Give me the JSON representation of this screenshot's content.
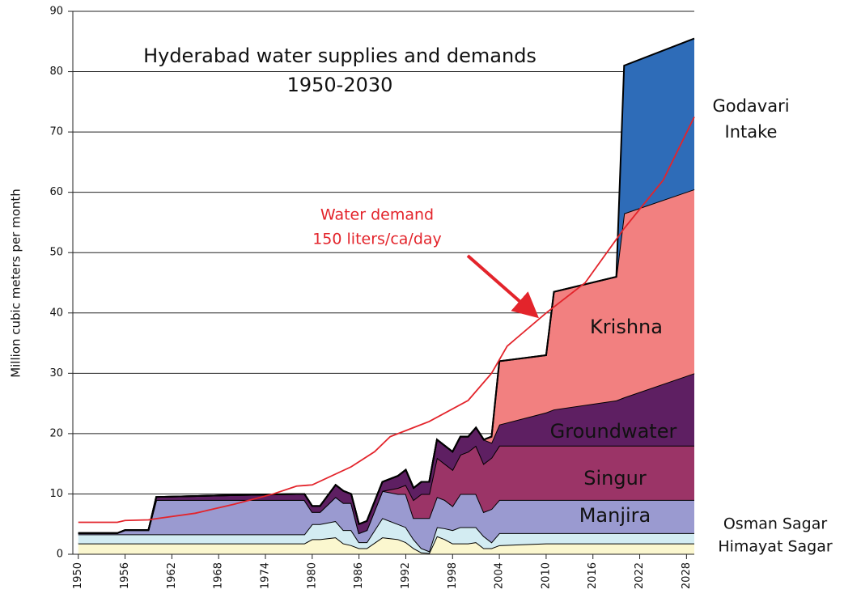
{
  "chart_data": {
    "type": "stacked_area",
    "title": "Hyderabad water supplies and demands",
    "subtitle": "1950-2030",
    "y_label": "Million cubic meters per month",
    "xlim": [
      1949.3,
      2029
    ],
    "ylim": [
      0,
      90
    ],
    "xticks": [
      1950,
      1956,
      1962,
      1968,
      1974,
      1980,
      1986,
      1992,
      1998,
      2004,
      2010,
      2016,
      2022,
      2028
    ],
    "yticks": [
      0,
      10,
      20,
      30,
      40,
      50,
      60,
      70,
      80,
      90
    ],
    "grid": true,
    "x": [
      1950,
      1955,
      1956,
      1959,
      1960,
      1970,
      1978,
      1979,
      1980,
      1981,
      1983,
      1984,
      1985,
      1986,
      1987,
      1989,
      1991,
      1992,
      1993,
      1994,
      1995,
      1996,
      1997,
      1998,
      1999,
      2000,
      2001,
      2002,
      2003,
      2004,
      2010,
      2011,
      2019,
      2020,
      2029
    ],
    "series": [
      {
        "name": "Himayat Sagar",
        "color": "#fbf7cf",
        "values": [
          1.8,
          1.8,
          1.8,
          1.8,
          1.8,
          1.8,
          1.8,
          1.8,
          2.5,
          2.5,
          2.8,
          1.8,
          1.5,
          1,
          1,
          2.8,
          2.5,
          2,
          1,
          0.3,
          0.2,
          3,
          2.5,
          1.8,
          1.8,
          1.8,
          2,
          1,
          1,
          1.5,
          1.8,
          1.8,
          1.8,
          1.8,
          1.8
        ]
      },
      {
        "name": "Osman Sagar",
        "color": "#d3ecf2",
        "values": [
          1.5,
          1.5,
          1.5,
          1.5,
          1.5,
          1.5,
          1.5,
          1.5,
          2.5,
          2.5,
          2.7,
          2.2,
          2.5,
          1,
          1,
          3.2,
          2.5,
          2.5,
          1.5,
          0.7,
          0.3,
          1.5,
          1.8,
          2.2,
          2.7,
          2.7,
          2.5,
          2,
          1,
          2,
          1.7,
          1.7,
          1.7,
          1.7,
          1.7
        ]
      },
      {
        "name": "Manjira",
        "color": "#9a9ad0",
        "values": [
          0.2,
          0.2,
          0.7,
          0.7,
          5.7,
          5.7,
          5.7,
          5.7,
          2,
          2,
          4,
          4.5,
          4.5,
          1.5,
          2,
          4.5,
          5,
          5.5,
          3.5,
          5,
          5.5,
          5,
          4.7,
          4,
          5.5,
          5.5,
          5.5,
          4,
          5.5,
          5.5,
          5.5,
          5.5,
          5.5,
          5.5,
          5.5
        ]
      },
      {
        "name": "Singur",
        "color": "#9b3467",
        "values": [
          0,
          0,
          0,
          0,
          0,
          0,
          0,
          0,
          0,
          0,
          0,
          0,
          0,
          0,
          0,
          0,
          1,
          1.5,
          3,
          4,
          4,
          6.5,
          6,
          6,
          6.5,
          7,
          8,
          8,
          8.5,
          9,
          9,
          9,
          9,
          9,
          9
        ]
      },
      {
        "name": "Groundwater",
        "color": "#5e1f62",
        "values": [
          0,
          0,
          0,
          0,
          0.5,
          0.8,
          1,
          1,
          1,
          1,
          2,
          2,
          1.5,
          1.5,
          1.5,
          1.5,
          2,
          2.5,
          2,
          2,
          2,
          3,
          3,
          3,
          3,
          2.5,
          3,
          4,
          2.5,
          3.5,
          5.5,
          6,
          7.5,
          8,
          12
        ]
      },
      {
        "name": "Krishna",
        "color": "#f28080",
        "values": [
          0,
          0,
          0,
          0,
          0,
          0,
          0,
          0,
          0,
          0,
          0,
          0,
          0,
          0,
          0,
          0,
          0,
          0,
          0,
          0,
          0,
          0,
          0,
          0,
          0,
          0,
          0,
          0,
          1,
          10.5,
          9.5,
          19.5,
          20.5,
          30.5,
          30.5
        ]
      },
      {
        "name": "Godavari Intake",
        "color": "#2e6cb8",
        "values": [
          0,
          0,
          0,
          0,
          0,
          0,
          0,
          0,
          0,
          0,
          0,
          0,
          0,
          0,
          0,
          0,
          0,
          0,
          0,
          0,
          0,
          0,
          0,
          0,
          0,
          0,
          0,
          0,
          0,
          0,
          0,
          0,
          0,
          24.5,
          25
        ]
      }
    ],
    "line": {
      "name": "Water demand",
      "annotation": "150 liters/ca/day",
      "color": "#e3242b",
      "x": [
        1950,
        1955,
        1956,
        1959,
        1960,
        1965,
        1970,
        1975,
        1978,
        1980,
        1985,
        1988,
        1990,
        1995,
        2000,
        2003,
        2005,
        2010,
        2015,
        2020,
        2025,
        2029
      ],
      "values": [
        5.3,
        5.3,
        5.6,
        5.7,
        5.9,
        6.8,
        8.3,
        10,
        11.3,
        11.5,
        14.5,
        17,
        19.5,
        22,
        25.5,
        30,
        34.5,
        40,
        45,
        54,
        62,
        72.5
      ]
    }
  }
}
